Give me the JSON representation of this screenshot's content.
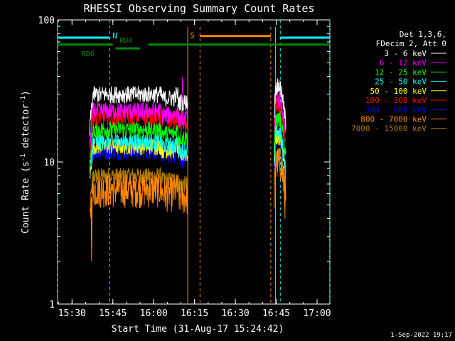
{
  "chart_data": {
    "type": "line",
    "title": "RHESSI Observing Summary Count Rates",
    "xlabel": "Start Time (31-Aug-17 15:24:42)",
    "ylabel": "Count Rate (s^-1 detector^-1)",
    "ylabel_main": "Count Rate (s",
    "ylabel_sup1": "-1",
    "ylabel_mid": " detector",
    "ylabel_sup2": "-1",
    "ylabel_end": ")",
    "yscale": "log",
    "ylim": [
      1,
      100
    ],
    "xlim_minutes": [
      24.7,
      124.7
    ],
    "x_ticks": [
      {
        "label": "15:30",
        "m": 30
      },
      {
        "label": "15:45",
        "m": 45
      },
      {
        "label": "16:00",
        "m": 60
      },
      {
        "label": "16:15",
        "m": 75
      },
      {
        "label": "16:30",
        "m": 90
      },
      {
        "label": "16:45",
        "m": 105
      },
      {
        "label": "17:00",
        "m": 120
      }
    ],
    "y_ticks": [
      {
        "label": "1",
        "v": 1
      },
      {
        "label": "10",
        "v": 10
      },
      {
        "label": "100",
        "v": 100
      }
    ],
    "legend_header": [
      "Det 1,3,6,",
      "FDecim 2, Att 0"
    ],
    "series": [
      {
        "name": "3 - 6 keV",
        "color": "#ffffff",
        "level1": 30,
        "level2": 34
      },
      {
        "name": "6 - 12 keV",
        "color": "#ff00ff",
        "level1": 23,
        "level2": 28
      },
      {
        "name": "12 - 25 keV",
        "color": "#00ff00",
        "level1": 17,
        "level2": 20
      },
      {
        "name": "25 - 50 keV",
        "color": "#00ffff",
        "level1": 14,
        "level2": 16
      },
      {
        "name": "50 - 100 keV",
        "color": "#ffff00",
        "level1": 13,
        "level2": 15
      },
      {
        "name": "100 - 300 keV",
        "color": "#ff0000",
        "level1": 21,
        "level2": 25
      },
      {
        "name": "300 - 800 keV",
        "color": "#0000ff",
        "level1": 12,
        "level2": 14
      },
      {
        "name": "800 - 7000 keV",
        "color": "#ff8800",
        "level1": 6.5,
        "level2": 10
      },
      {
        "name": "7000 - 15000 keV",
        "color": "#aa7700",
        "level1": 8,
        "level2": 11
      }
    ],
    "data_intervals": [
      [
        36.5,
        72.5
      ],
      [
        104.2,
        108.5
      ]
    ],
    "annotations": {
      "night": {
        "label": "N",
        "color": "#00ffff",
        "y_value": 75,
        "segments": [
          [
            24.7,
            43.8
          ],
          [
            106.5,
            124.7
          ]
        ],
        "vlines": [
          24.7,
          43.8,
          106.5,
          124.7
        ]
      },
      "saa": {
        "label": "S",
        "color": "#ff8800",
        "y_value": 77,
        "segments": [
          [
            77.0,
            103.0
          ]
        ],
        "vlines": [
          77.0,
          103.0
        ]
      },
      "rd0": {
        "label": "RD0",
        "color": "#008800",
        "y_value": 67,
        "segments": [
          [
            24.7,
            45.0
          ],
          [
            58.0,
            124.7
          ]
        ]
      },
      "rd6": {
        "label": "RD6",
        "color": "#008800",
        "y_value": 63,
        "segments": [
          [
            46.0,
            55.0
          ]
        ]
      },
      "solid_vlines": [
        {
          "m": 72.5,
          "color": "#ff8800"
        },
        {
          "m": 104.7,
          "color": "#00ffff"
        }
      ]
    }
  },
  "footer_date": "1-Sep-2022 19:17"
}
